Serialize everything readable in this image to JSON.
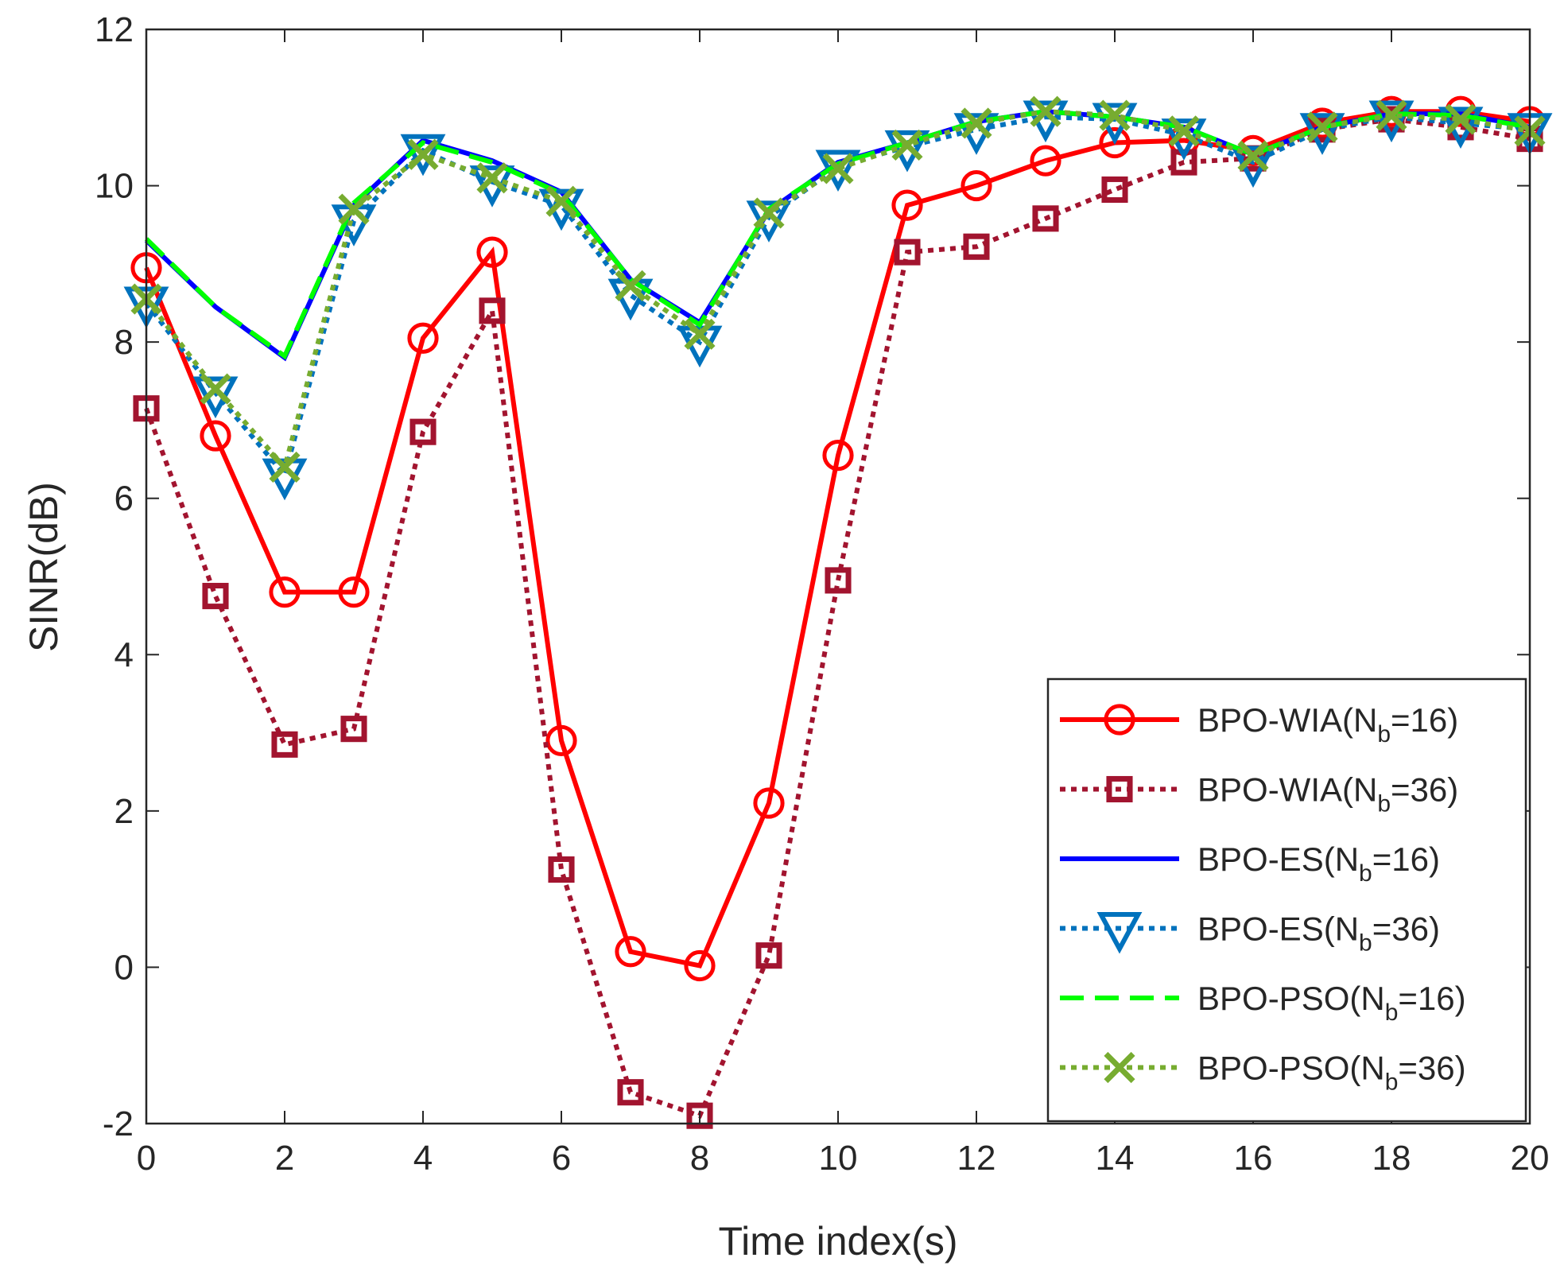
{
  "chart_data": {
    "type": "line",
    "title": "",
    "xlabel": "Time index(s)",
    "ylabel": "SINR(dB)",
    "xlim": [
      0,
      20
    ],
    "ylim": [
      -2,
      12
    ],
    "xticks": [
      0,
      2,
      4,
      6,
      8,
      10,
      12,
      14,
      16,
      18,
      20
    ],
    "yticks": [
      -2,
      0,
      2,
      4,
      6,
      8,
      10,
      12
    ],
    "grid": false,
    "legend_position": "bottom-right",
    "x": [
      0,
      1,
      2,
      3,
      4,
      5,
      6,
      7,
      8,
      9,
      10,
      11,
      12,
      13,
      14,
      15,
      16,
      17,
      18,
      19,
      20
    ],
    "series": [
      {
        "name": "BPO-WIA(N_b=16)",
        "label_main": "BPO-WIA(N",
        "label_sub": "b",
        "label_tail": "=16)",
        "color": "#ff0000",
        "line_style": "solid",
        "marker": "circle",
        "values": [
          8.95,
          6.8,
          4.8,
          4.8,
          8.05,
          9.15,
          2.9,
          0.2,
          0.02,
          2.1,
          6.55,
          9.75,
          10.0,
          10.32,
          10.55,
          10.58,
          10.45,
          10.8,
          10.95,
          10.95,
          10.82
        ]
      },
      {
        "name": "BPO-WIA(N_b=36)",
        "label_main": "BPO-WIA(N",
        "label_sub": "b",
        "label_tail": "=36)",
        "color": "#a2142f",
        "line_style": "dotted",
        "marker": "square",
        "values": [
          7.15,
          4.75,
          2.85,
          3.05,
          6.85,
          8.4,
          1.25,
          -1.6,
          -1.9,
          0.15,
          4.95,
          9.15,
          9.22,
          9.58,
          9.95,
          10.3,
          10.35,
          10.72,
          10.85,
          10.75,
          10.6
        ]
      },
      {
        "name": "BPO-ES(N_b=16)",
        "label_main": "BPO-ES(N",
        "label_sub": "b",
        "label_tail": "=16)",
        "color": "#0000ff",
        "line_style": "solid",
        "marker": "none",
        "values": [
          9.3,
          8.45,
          7.8,
          9.75,
          10.58,
          10.32,
          9.92,
          8.8,
          8.25,
          9.68,
          10.3,
          10.55,
          10.82,
          10.95,
          10.88,
          10.75,
          10.4,
          10.75,
          10.92,
          10.92,
          10.75
        ]
      },
      {
        "name": "BPO-ES(N_b=36)",
        "label_main": "BPO-ES(N",
        "label_sub": "b",
        "label_tail": "=36)",
        "color": "#0072bd",
        "line_style": "dotted",
        "marker": "triangle-down",
        "values": [
          8.5,
          7.35,
          6.3,
          9.55,
          10.45,
          10.05,
          9.75,
          8.6,
          8.0,
          9.6,
          10.25,
          10.5,
          10.72,
          10.88,
          10.85,
          10.65,
          10.3,
          10.72,
          10.88,
          10.8,
          10.72
        ]
      },
      {
        "name": "BPO-PSO(N_b=16)",
        "label_main": "BPO-PSO(N",
        "label_sub": "b",
        "label_tail": "=16)",
        "color": "#00ff00",
        "line_style": "dashed",
        "marker": "none",
        "values": [
          9.32,
          8.45,
          7.82,
          9.78,
          10.55,
          10.3,
          9.9,
          8.8,
          8.22,
          9.7,
          10.28,
          10.55,
          10.82,
          10.95,
          10.88,
          10.75,
          10.4,
          10.75,
          10.92,
          10.9,
          10.75
        ]
      },
      {
        "name": "BPO-PSO(N_b=36)",
        "label_main": "BPO-PSO(N",
        "label_sub": "b",
        "label_tail": "=36)",
        "color": "#77ac30",
        "line_style": "dotted",
        "marker": "x",
        "values": [
          8.55,
          7.4,
          6.4,
          9.7,
          10.4,
          10.1,
          9.8,
          8.72,
          8.1,
          9.65,
          10.22,
          10.52,
          10.8,
          10.95,
          10.9,
          10.7,
          10.38,
          10.75,
          10.9,
          10.85,
          10.7
        ]
      }
    ]
  }
}
